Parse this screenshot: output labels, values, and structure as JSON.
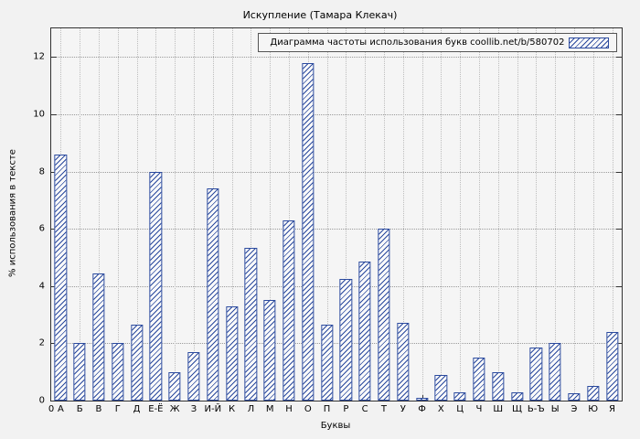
{
  "chart_data": {
    "type": "bar",
    "title": "Искупление (Тамара Клекач)",
    "legend": "Диаграмма частоты использования букв coollib.net/b/580702",
    "legend_position": "top-right",
    "xlabel": "Буквы",
    "ylabel": "% использования в тексте",
    "origin_label": "0",
    "ylim": [
      0,
      13
    ],
    "yticks": [
      0,
      2,
      4,
      6,
      8,
      10,
      12
    ],
    "grid": true,
    "bar_color": "#2b4a9e",
    "categories": [
      "А",
      "Б",
      "В",
      "Г",
      "Д",
      "Е-Ё",
      "Ж",
      "З",
      "И-Й",
      "К",
      "Л",
      "М",
      "Н",
      "О",
      "П",
      "Р",
      "С",
      "Т",
      "У",
      "Ф",
      "Х",
      "Ц",
      "Ч",
      "Ш",
      "Щ",
      "Ь-Ъ",
      "Ы",
      "Э",
      "Ю",
      "Я"
    ],
    "values": [
      8.6,
      2.0,
      4.45,
      2.0,
      2.65,
      8.0,
      1.0,
      1.7,
      7.4,
      3.3,
      5.35,
      3.5,
      6.3,
      11.8,
      2.65,
      4.25,
      4.85,
      6.0,
      2.7,
      0.1,
      0.9,
      0.3,
      1.5,
      1.0,
      0.3,
      1.85,
      2.0,
      0.25,
      0.5,
      2.4
    ]
  }
}
